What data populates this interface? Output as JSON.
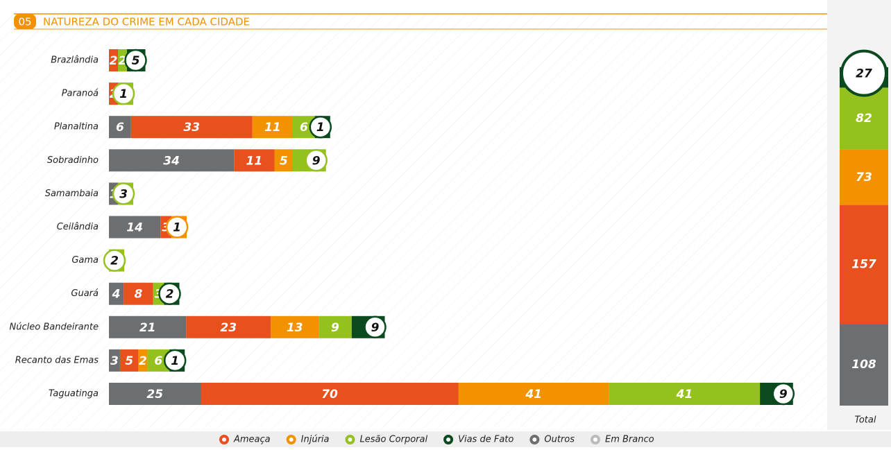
{
  "chart_data": {
    "type": "stacked-bar",
    "number": "05",
    "title": "NATUREZA DO CRIME EM CADA CIDADE",
    "categories": [
      "Brazlândia",
      "Paranoá",
      "Planaltina",
      "Sobradinho",
      "Samambaia",
      "Ceilândia",
      "Gama",
      "Guará",
      "Núcleo Bandeirante",
      "Recanto das Emas",
      "Taguatinga"
    ],
    "series": [
      {
        "name": "Outros",
        "color": "#6d6e70",
        "values": [
          null,
          null,
          6,
          34,
          1,
          14,
          null,
          4,
          21,
          3,
          25
        ],
        "total": 108
      },
      {
        "name": "Ameaça",
        "color": "#e8501e",
        "values": [
          2,
          2,
          33,
          11,
          null,
          3,
          null,
          8,
          23,
          5,
          70
        ],
        "total": 157
      },
      {
        "name": "Injúria",
        "color": "#f39200",
        "values": [
          null,
          null,
          11,
          5,
          null,
          1,
          null,
          null,
          13,
          2,
          41
        ],
        "total": 73
      },
      {
        "name": "Lesão Corporal",
        "color": "#95c11f",
        "values": [
          2,
          1,
          6,
          9,
          3,
          null,
          2,
          3,
          9,
          6,
          41
        ],
        "total": 82
      },
      {
        "name": "Vias de Fato",
        "color": "#0b4a1f",
        "values": [
          5,
          null,
          1,
          null,
          null,
          null,
          null,
          2,
          9,
          1,
          9
        ],
        "total": 27
      },
      {
        "name": "Em Branco",
        "color": "#bcbcbc",
        "values": [
          null,
          null,
          null,
          null,
          null,
          null,
          null,
          null,
          null,
          null,
          null
        ]
      }
    ],
    "legend_order": [
      1,
      2,
      3,
      4,
      0,
      5
    ],
    "total_label": "Total"
  }
}
